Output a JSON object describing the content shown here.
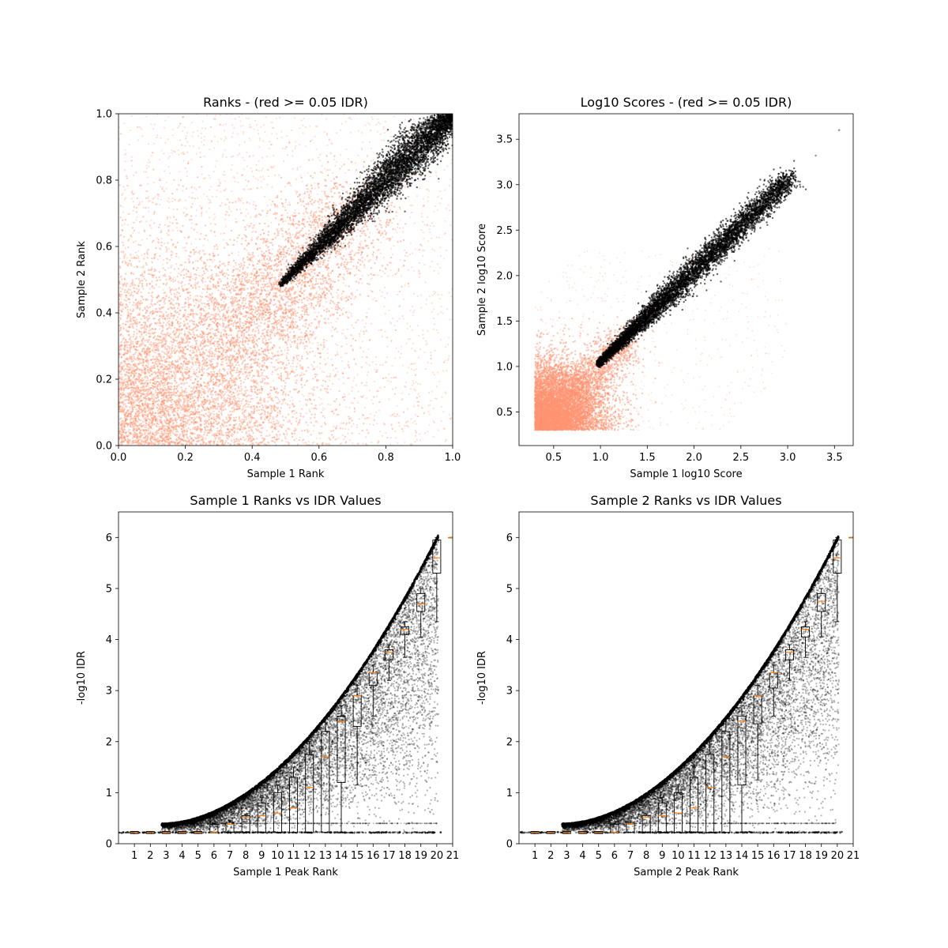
{
  "chart_data": [
    {
      "type": "scatter",
      "title": "Ranks - (red >= 0.05 IDR)",
      "xlabel": "Sample 1 Rank",
      "ylabel": "Sample 2 Rank",
      "xlim": [
        0,
        1
      ],
      "ylim": [
        0,
        1
      ],
      "xticks": [
        "0.0",
        "0.2",
        "0.4",
        "0.6",
        "0.8",
        "1.0"
      ],
      "yticks": [
        "0.0",
        "0.2",
        "0.4",
        "0.6",
        "0.8",
        "1.0"
      ],
      "grid": false,
      "series": [
        {
          "color": "#ff9472",
          "region": "lower-rank background spread",
          "x": [
            0.05,
            0.2,
            0.35,
            0.5,
            0.6,
            0.7
          ],
          "y": [
            0.05,
            0.2,
            0.35,
            0.45,
            0.6,
            0.7
          ]
        },
        {
          "color": "#000000",
          "region": "diagonal band",
          "x": [
            0.48,
            0.6,
            0.7,
            0.8,
            0.9,
            1.0
          ],
          "y": [
            0.49,
            0.63,
            0.73,
            0.83,
            0.92,
            1.0
          ]
        }
      ]
    },
    {
      "type": "scatter",
      "title": "Log10 Scores - (red >= 0.05 IDR)",
      "xlabel": "Sample 1 log10 Score",
      "ylabel": "Sample 2 log10 Score",
      "xlim": [
        0.13,
        3.7
      ],
      "ylim": [
        0.13,
        3.78
      ],
      "xticks": [
        "0.5",
        "1.0",
        "1.5",
        "2.0",
        "2.5",
        "3.0",
        "3.5"
      ],
      "yticks": [
        "0.5",
        "1.0",
        "1.5",
        "2.0",
        "2.5",
        "3.0",
        "3.5"
      ],
      "grid": false,
      "series": [
        {
          "color": "#ff9472",
          "region": "low-score cloud",
          "x": [
            0.4,
            0.6,
            0.8,
            1.0,
            1.2
          ],
          "y": [
            0.45,
            0.6,
            0.8,
            1.0,
            1.25
          ]
        },
        {
          "color": "#000000",
          "region": "diagonal band",
          "x": [
            0.97,
            1.5,
            2.0,
            2.5,
            3.0,
            3.55
          ],
          "y": [
            0.97,
            1.55,
            2.0,
            2.5,
            3.0,
            3.6
          ]
        }
      ]
    },
    {
      "type": "scatter",
      "title": "Sample 1 Ranks vs IDR Values",
      "xlabel": "Sample 1 Peak Rank",
      "ylabel": "-log10 IDR",
      "xlim": [
        0,
        21
      ],
      "ylim": [
        0,
        6.5
      ],
      "xticks": [
        "1",
        "2",
        "3",
        "4",
        "5",
        "6",
        "7",
        "8",
        "9",
        "10",
        "11",
        "12",
        "13",
        "14",
        "15",
        "16",
        "17",
        "18",
        "19",
        "20",
        "21"
      ],
      "yticks": [
        "0",
        "1",
        "2",
        "3",
        "4",
        "5",
        "6"
      ],
      "grid": false,
      "boxplot": [
        {
          "pos": 1,
          "q1": 0.2,
          "med": 0.22,
          "q3": 0.24,
          "lo": 0.2,
          "hi": 0.24
        },
        {
          "pos": 2,
          "q1": 0.2,
          "med": 0.22,
          "q3": 0.24,
          "lo": 0.2,
          "hi": 0.24
        },
        {
          "pos": 3,
          "q1": 0.2,
          "med": 0.22,
          "q3": 0.24,
          "lo": 0.2,
          "hi": 0.24
        },
        {
          "pos": 4,
          "q1": 0.2,
          "med": 0.22,
          "q3": 0.24,
          "lo": 0.2,
          "hi": 0.24
        },
        {
          "pos": 5,
          "q1": 0.2,
          "med": 0.22,
          "q3": 0.24,
          "lo": 0.2,
          "hi": 0.24
        },
        {
          "pos": 6,
          "q1": 0.22,
          "med": 0.22,
          "q3": 0.38,
          "lo": 0.22,
          "hi": 0.4
        },
        {
          "pos": 7,
          "q1": 0.22,
          "med": 0.38,
          "q3": 0.42,
          "lo": 0.22,
          "hi": 0.45
        },
        {
          "pos": 8,
          "q1": 0.22,
          "med": 0.52,
          "q3": 0.55,
          "lo": 0.22,
          "hi": 0.58
        },
        {
          "pos": 9,
          "q1": 0.22,
          "med": 0.55,
          "q3": 0.8,
          "lo": 0.22,
          "hi": 0.9
        },
        {
          "pos": 10,
          "q1": 0.22,
          "med": 0.6,
          "q3": 1.0,
          "lo": 0.22,
          "hi": 1.15
        },
        {
          "pos": 11,
          "q1": 0.22,
          "med": 0.7,
          "q3": 1.3,
          "lo": 0.22,
          "hi": 1.5
        },
        {
          "pos": 12,
          "q1": 0.22,
          "med": 1.1,
          "q3": 1.75,
          "lo": 0.22,
          "hi": 2.0
        },
        {
          "pos": 13,
          "q1": 0.22,
          "med": 1.7,
          "q3": 2.2,
          "lo": 0.22,
          "hi": 2.45
        },
        {
          "pos": 14,
          "q1": 1.2,
          "med": 2.4,
          "q3": 2.5,
          "lo": 0.22,
          "hi": 2.7
        },
        {
          "pos": 15,
          "q1": 2.3,
          "med": 2.9,
          "q3": 2.9,
          "lo": 1.15,
          "hi": 3.1
        },
        {
          "pos": 16,
          "q1": 3.1,
          "med": 3.35,
          "q3": 3.35,
          "lo": 2.5,
          "hi": 3.5
        },
        {
          "pos": 17,
          "q1": 3.6,
          "med": 3.75,
          "q3": 3.8,
          "lo": 3.2,
          "hi": 3.9
        },
        {
          "pos": 18,
          "q1": 4.1,
          "med": 4.2,
          "q3": 4.25,
          "lo": 3.65,
          "hi": 4.35
        },
        {
          "pos": 19,
          "q1": 4.55,
          "med": 4.7,
          "q3": 4.9,
          "lo": 4.05,
          "hi": 5.0
        },
        {
          "pos": 20,
          "q1": 5.3,
          "med": 5.6,
          "q3": 5.95,
          "lo": 4.35,
          "hi": 6.0
        },
        {
          "pos": 21,
          "q1": 6.0,
          "med": 6.0,
          "q3": 6.0,
          "lo": 6.0,
          "hi": 6.0
        }
      ]
    },
    {
      "type": "scatter",
      "title": "Sample 2 Ranks vs IDR Values",
      "xlabel": "Sample 2 Peak Rank",
      "ylabel": "-log10 IDR",
      "xlim": [
        0,
        21
      ],
      "ylim": [
        0,
        6.5
      ],
      "xticks": [
        "1",
        "2",
        "3",
        "4",
        "5",
        "6",
        "7",
        "8",
        "9",
        "10",
        "11",
        "12",
        "13",
        "14",
        "15",
        "16",
        "17",
        "18",
        "19",
        "20",
        "21"
      ],
      "yticks": [
        "0",
        "1",
        "2",
        "3",
        "4",
        "5",
        "6"
      ],
      "grid": false,
      "boxplot": [
        {
          "pos": 1,
          "q1": 0.2,
          "med": 0.22,
          "q3": 0.24,
          "lo": 0.2,
          "hi": 0.24
        },
        {
          "pos": 2,
          "q1": 0.2,
          "med": 0.22,
          "q3": 0.24,
          "lo": 0.2,
          "hi": 0.24
        },
        {
          "pos": 3,
          "q1": 0.2,
          "med": 0.22,
          "q3": 0.24,
          "lo": 0.2,
          "hi": 0.24
        },
        {
          "pos": 4,
          "q1": 0.2,
          "med": 0.22,
          "q3": 0.24,
          "lo": 0.2,
          "hi": 0.24
        },
        {
          "pos": 5,
          "q1": 0.2,
          "med": 0.22,
          "q3": 0.24,
          "lo": 0.2,
          "hi": 0.24
        },
        {
          "pos": 6,
          "q1": 0.22,
          "med": 0.22,
          "q3": 0.38,
          "lo": 0.22,
          "hi": 0.4
        },
        {
          "pos": 7,
          "q1": 0.22,
          "med": 0.38,
          "q3": 0.42,
          "lo": 0.22,
          "hi": 0.45
        },
        {
          "pos": 8,
          "q1": 0.22,
          "med": 0.52,
          "q3": 0.55,
          "lo": 0.22,
          "hi": 0.58
        },
        {
          "pos": 9,
          "q1": 0.22,
          "med": 0.55,
          "q3": 0.8,
          "lo": 0.22,
          "hi": 0.9
        },
        {
          "pos": 10,
          "q1": 0.22,
          "med": 0.6,
          "q3": 1.0,
          "lo": 0.22,
          "hi": 1.15
        },
        {
          "pos": 11,
          "q1": 0.22,
          "med": 0.7,
          "q3": 1.3,
          "lo": 0.22,
          "hi": 1.5
        },
        {
          "pos": 12,
          "q1": 0.22,
          "med": 1.1,
          "q3": 1.75,
          "lo": 0.22,
          "hi": 2.0
        },
        {
          "pos": 13,
          "q1": 0.22,
          "med": 1.7,
          "q3": 2.2,
          "lo": 0.22,
          "hi": 2.45
        },
        {
          "pos": 14,
          "q1": 1.15,
          "med": 2.4,
          "q3": 2.5,
          "lo": 0.22,
          "hi": 2.7
        },
        {
          "pos": 15,
          "q1": 2.35,
          "med": 2.9,
          "q3": 2.9,
          "lo": 1.25,
          "hi": 3.1
        },
        {
          "pos": 16,
          "q1": 3.05,
          "med": 3.35,
          "q3": 3.35,
          "lo": 2.5,
          "hi": 3.5
        },
        {
          "pos": 17,
          "q1": 3.6,
          "med": 3.75,
          "q3": 3.8,
          "lo": 3.2,
          "hi": 3.9
        },
        {
          "pos": 18,
          "q1": 4.05,
          "med": 4.2,
          "q3": 4.25,
          "lo": 3.65,
          "hi": 4.35
        },
        {
          "pos": 19,
          "q1": 4.55,
          "med": 4.75,
          "q3": 4.9,
          "lo": 4.05,
          "hi": 5.0
        },
        {
          "pos": 20,
          "q1": 5.3,
          "med": 5.6,
          "q3": 5.95,
          "lo": 4.35,
          "hi": 6.0
        },
        {
          "pos": 21,
          "q1": 6.0,
          "med": 6.0,
          "q3": 6.0,
          "lo": 6.0,
          "hi": 6.0
        }
      ]
    }
  ]
}
